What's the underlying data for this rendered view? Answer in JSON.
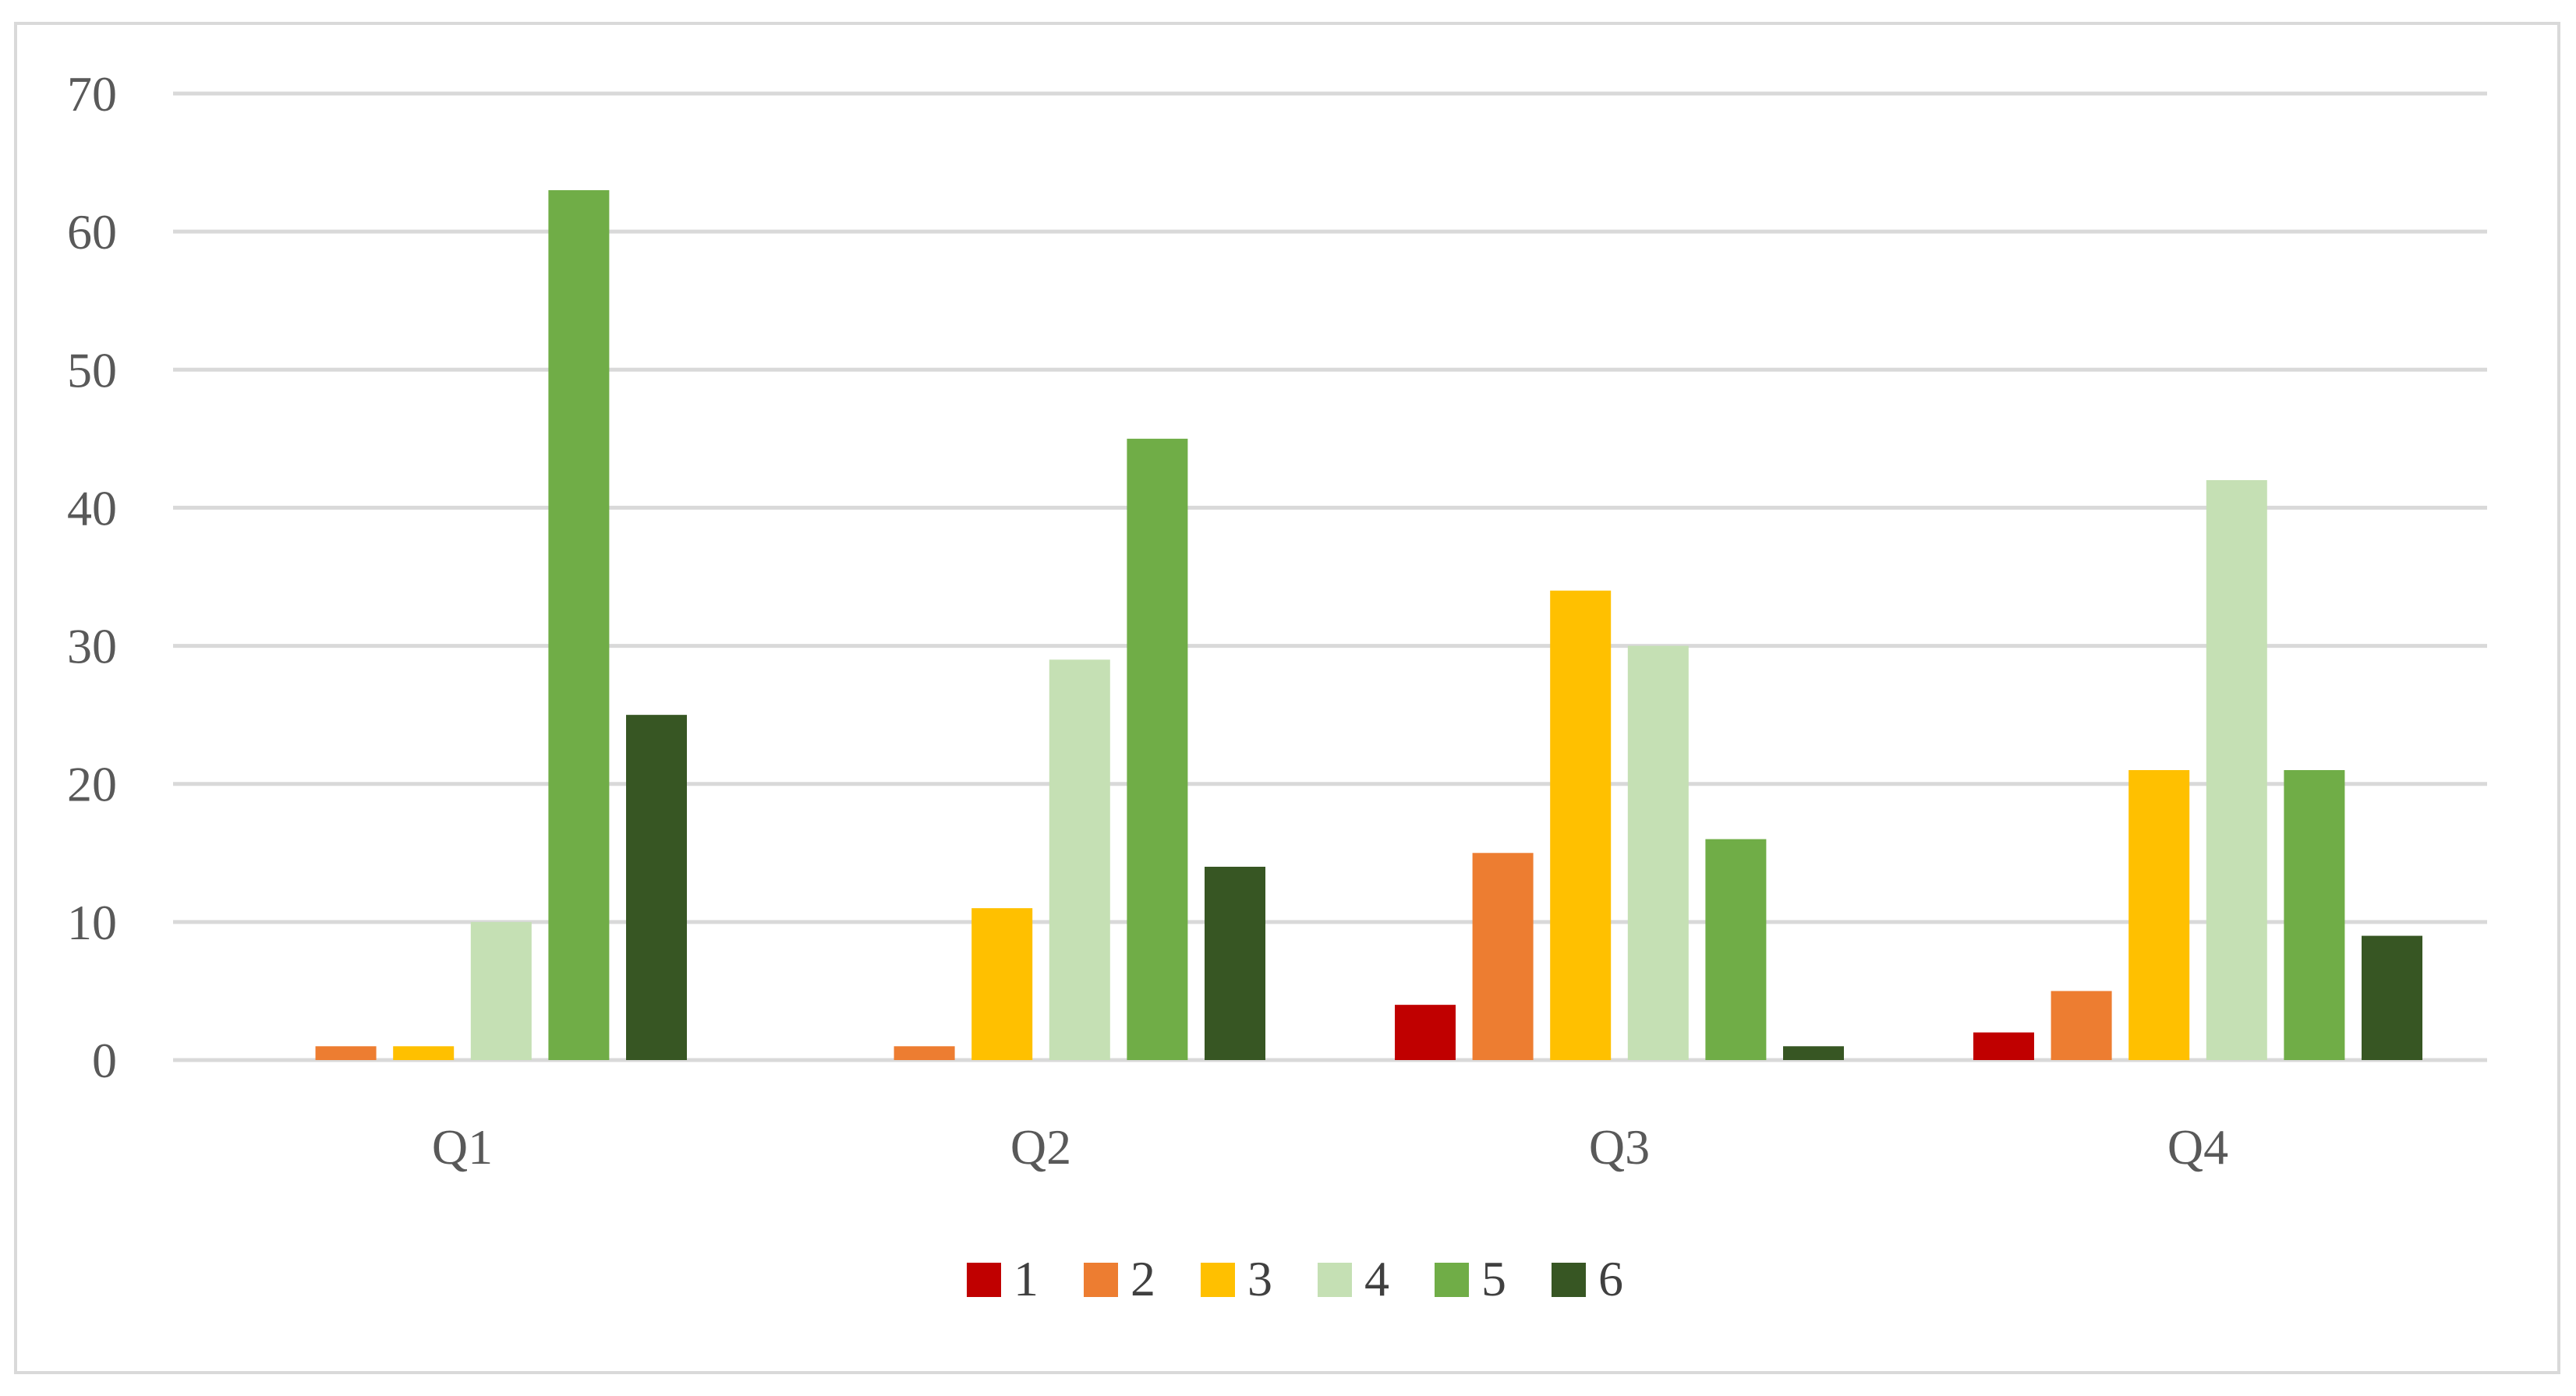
{
  "chart_data": {
    "type": "bar",
    "title": "",
    "xlabel": "",
    "ylabel": "",
    "categories": [
      "Q1",
      "Q2",
      "Q3",
      "Q4"
    ],
    "ylim": [
      0,
      70
    ],
    "yticks": [
      0,
      10,
      20,
      30,
      40,
      50,
      60,
      70
    ],
    "grid": true,
    "legend_position": "bottom",
    "series": [
      {
        "name": "1",
        "color": "#c00000",
        "values": [
          0,
          0,
          4,
          2
        ]
      },
      {
        "name": "2",
        "color": "#ed7d31",
        "values": [
          1,
          1,
          15,
          5
        ]
      },
      {
        "name": "3",
        "color": "#ffc000",
        "values": [
          1,
          11,
          34,
          21
        ]
      },
      {
        "name": "4",
        "color": "#c5e0b4",
        "values": [
          10,
          29,
          30,
          42
        ]
      },
      {
        "name": "5",
        "color": "#70ad47",
        "values": [
          63,
          45,
          16,
          21
        ]
      },
      {
        "name": "6",
        "color": "#375623",
        "values": [
          25,
          14,
          1,
          9
        ]
      }
    ]
  }
}
